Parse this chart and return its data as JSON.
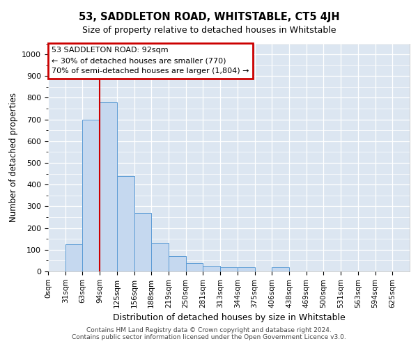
{
  "title": "53, SADDLETON ROAD, WHITSTABLE, CT5 4JH",
  "subtitle": "Size of property relative to detached houses in Whitstable",
  "xlabel": "Distribution of detached houses by size in Whitstable",
  "ylabel": "Number of detached properties",
  "bar_color": "#c5d8ef",
  "bar_edge_color": "#5b9bd5",
  "bg_color": "#dce6f1",
  "grid_color": "white",
  "annotation_box_color": "#cc0000",
  "vline_color": "#cc0000",
  "annotation_text_line1": "53 SADDLETON ROAD: 92sqm",
  "annotation_text_line2": "← 30% of detached houses are smaller (770)",
  "annotation_text_line3": "70% of semi-detached houses are larger (1,804) →",
  "property_size_bin": 3,
  "bin_width": 31.25,
  "bin_starts": [
    0,
    31.25,
    62.5,
    93.75,
    125.0,
    156.25,
    187.5,
    218.75,
    250.0,
    281.25,
    312.5,
    343.75,
    375.0,
    406.25,
    437.5,
    468.75,
    500.0,
    531.25,
    562.5,
    593.75,
    625.0
  ],
  "bar_heights": [
    0,
    125,
    700,
    780,
    440,
    270,
    130,
    70,
    40,
    25,
    20,
    20,
    0,
    20,
    0,
    0,
    0,
    0,
    0,
    0,
    0
  ],
  "xlim": [
    0,
    656.25
  ],
  "ylim": [
    0,
    1050
  ],
  "yticks": [
    0,
    100,
    200,
    300,
    400,
    500,
    600,
    700,
    800,
    900,
    1000
  ],
  "xtick_labels": [
    "0sqm",
    "31sqm",
    "63sqm",
    "94sqm",
    "125sqm",
    "156sqm",
    "188sqm",
    "219sqm",
    "250sqm",
    "281sqm",
    "313sqm",
    "344sqm",
    "375sqm",
    "406sqm",
    "438sqm",
    "469sqm",
    "500sqm",
    "531sqm",
    "563sqm",
    "594sqm",
    "625sqm"
  ],
  "vline_x": 93.75,
  "footer_line1": "Contains HM Land Registry data © Crown copyright and database right 2024.",
  "footer_line2": "Contains public sector information licensed under the Open Government Licence v3.0."
}
